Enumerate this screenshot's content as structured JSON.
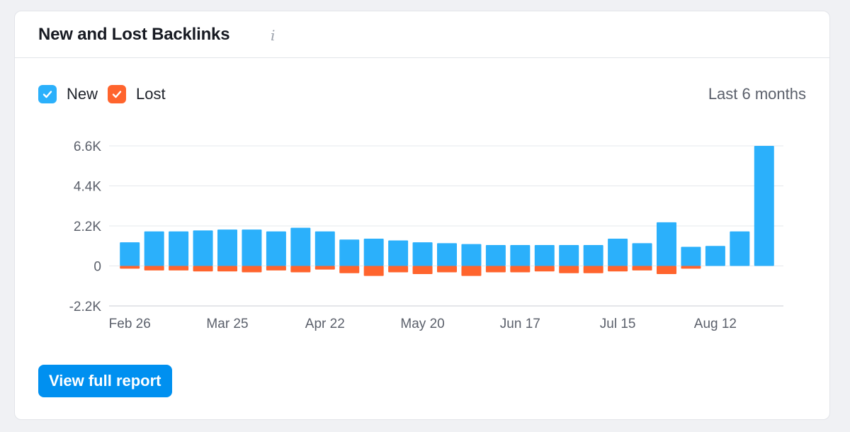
{
  "widget": {
    "title": "New and Lost Backlinks",
    "info_icon": "i",
    "period": "Last 6 months",
    "button_label": "View full report"
  },
  "legend": [
    {
      "label": "New",
      "color": "#2bb0fb",
      "checked": true
    },
    {
      "label": "Lost",
      "color": "#ff642d",
      "checked": true
    }
  ],
  "chart_data": {
    "type": "bar",
    "title": "New and Lost Backlinks",
    "xlabel": "",
    "ylabel": "",
    "ylim": [
      -2200,
      6600
    ],
    "y_ticks": [
      {
        "value": 6600,
        "label": "6.6K"
      },
      {
        "value": 4400,
        "label": "4.4K"
      },
      {
        "value": 2200,
        "label": "2.2K"
      },
      {
        "value": 0,
        "label": "0"
      },
      {
        "value": -2200,
        "label": "-2.2K"
      }
    ],
    "x_tick_labels": [
      {
        "index": 0,
        "label": "Feb 26"
      },
      {
        "index": 4,
        "label": "Mar 25"
      },
      {
        "index": 8,
        "label": "Apr 22"
      },
      {
        "index": 12,
        "label": "May 20"
      },
      {
        "index": 16,
        "label": "Jun 17"
      },
      {
        "index": 20,
        "label": "Jul 15"
      },
      {
        "index": 24,
        "label": "Aug 12"
      }
    ],
    "stacked": true,
    "series": [
      {
        "name": "New",
        "color": "#2bb0fb",
        "values": [
          1300,
          1900,
          1900,
          1950,
          2000,
          2000,
          1900,
          2100,
          1900,
          1450,
          1500,
          1400,
          1300,
          1250,
          1200,
          1150,
          1150,
          1150,
          1150,
          1150,
          1500,
          1250,
          2400,
          1050,
          1100,
          1900,
          6600
        ]
      },
      {
        "name": "Lost",
        "color": "#ff642d",
        "values": [
          -150,
          -250,
          -250,
          -300,
          -300,
          -350,
          -250,
          -350,
          -200,
          -400,
          -550,
          -350,
          -450,
          -350,
          -550,
          -350,
          -350,
          -300,
          -400,
          -400,
          -300,
          -250,
          -450,
          -150,
          0,
          0,
          0
        ]
      }
    ]
  }
}
